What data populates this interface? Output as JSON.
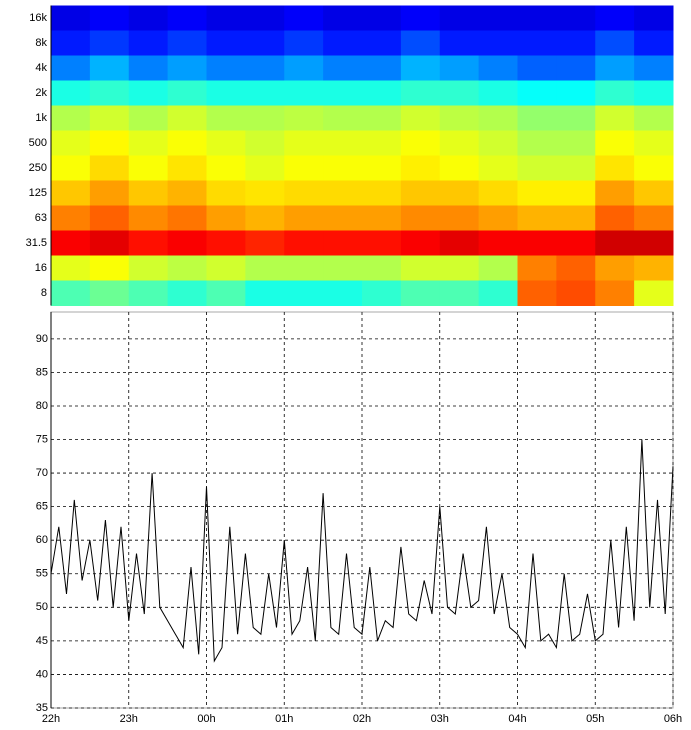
{
  "chart_data": [
    {
      "type": "heatmap",
      "y_categories": [
        "16k",
        "8k",
        "4k",
        "2k",
        "1k",
        "500",
        "250",
        "125",
        "63",
        "31.5",
        "16",
        "8"
      ],
      "x": [
        22,
        22.5,
        23,
        23.5,
        24,
        24.5,
        25,
        25.5,
        26,
        26.5,
        27,
        27.5,
        28,
        28.5,
        29,
        29.5
      ],
      "xlim": [
        22,
        30
      ],
      "zlim": [
        0,
        100
      ],
      "values": [
        [
          10,
          12,
          10,
          12,
          10,
          10,
          12,
          10,
          10,
          12,
          10,
          10,
          10,
          10,
          12,
          10
        ],
        [
          15,
          18,
          15,
          18,
          15,
          15,
          18,
          15,
          15,
          20,
          15,
          15,
          15,
          15,
          20,
          15
        ],
        [
          25,
          30,
          25,
          28,
          25,
          25,
          28,
          25,
          25,
          30,
          28,
          25,
          22,
          22,
          28,
          25
        ],
        [
          40,
          42,
          40,
          42,
          40,
          40,
          40,
          40,
          40,
          42,
          42,
          40,
          38,
          38,
          42,
          40
        ],
        [
          55,
          58,
          55,
          58,
          55,
          55,
          56,
          55,
          55,
          58,
          56,
          55,
          52,
          52,
          58,
          55
        ],
        [
          60,
          63,
          60,
          62,
          60,
          58,
          60,
          60,
          60,
          62,
          60,
          58,
          55,
          55,
          62,
          60
        ],
        [
          62,
          66,
          62,
          65,
          62,
          60,
          62,
          62,
          62,
          64,
          62,
          60,
          58,
          58,
          65,
          62
        ],
        [
          68,
          72,
          68,
          70,
          66,
          65,
          66,
          66,
          66,
          68,
          68,
          66,
          64,
          64,
          72,
          68
        ],
        [
          75,
          78,
          74,
          76,
          72,
          70,
          72,
          72,
          72,
          74,
          74,
          72,
          70,
          70,
          78,
          75
        ],
        [
          88,
          90,
          86,
          88,
          86,
          84,
          86,
          86,
          86,
          88,
          90,
          88,
          88,
          88,
          92,
          92
        ],
        [
          60,
          62,
          58,
          56,
          58,
          55,
          55,
          55,
          55,
          58,
          58,
          55,
          75,
          78,
          72,
          70
        ],
        [
          45,
          48,
          45,
          42,
          45,
          40,
          40,
          40,
          42,
          45,
          45,
          42,
          78,
          80,
          75,
          60
        ]
      ]
    },
    {
      "type": "line",
      "color": "#000000",
      "grid": true,
      "x": [
        22.0,
        22.1,
        22.2,
        22.3,
        22.4,
        22.5,
        22.6,
        22.7,
        22.8,
        22.9,
        23.0,
        23.1,
        23.2,
        23.3,
        23.4,
        23.5,
        23.6,
        23.7,
        23.8,
        23.9,
        24.0,
        24.1,
        24.2,
        24.3,
        24.4,
        24.5,
        24.6,
        24.7,
        24.8,
        24.9,
        25.0,
        25.1,
        25.2,
        25.3,
        25.4,
        25.5,
        25.6,
        25.7,
        25.8,
        25.9,
        26.0,
        26.1,
        26.2,
        26.3,
        26.4,
        26.5,
        26.6,
        26.7,
        26.8,
        26.9,
        27.0,
        27.1,
        27.2,
        27.3,
        27.4,
        27.5,
        27.6,
        27.7,
        27.8,
        27.9,
        28.0,
        28.1,
        28.2,
        28.3,
        28.4,
        28.5,
        28.6,
        28.7,
        28.8,
        28.9,
        29.0,
        29.1,
        29.2,
        29.3,
        29.4,
        29.5,
        29.6,
        29.7,
        29.8,
        29.9,
        30.0
      ],
      "values": [
        55,
        62,
        52,
        66,
        54,
        60,
        51,
        63,
        50,
        62,
        48,
        58,
        49,
        70,
        50,
        48,
        46,
        44,
        56,
        43,
        68,
        42,
        44,
        62,
        46,
        58,
        47,
        46,
        55,
        47,
        60,
        46,
        48,
        56,
        45,
        67,
        47,
        46,
        58,
        47,
        46,
        56,
        45,
        48,
        47,
        59,
        49,
        48,
        54,
        49,
        65,
        50,
        49,
        58,
        50,
        51,
        62,
        49,
        55,
        47,
        46,
        44,
        58,
        45,
        46,
        44,
        55,
        45,
        46,
        52,
        45,
        46,
        60,
        47,
        62,
        48,
        75,
        50,
        66,
        49,
        71
      ],
      "xlim": [
        22,
        30
      ],
      "xticks": [
        {
          "value": 22,
          "label": "22h"
        },
        {
          "value": 23,
          "label": "23h"
        },
        {
          "value": 24,
          "label": "00h"
        },
        {
          "value": 25,
          "label": "01h"
        },
        {
          "value": 26,
          "label": "02h"
        },
        {
          "value": 27,
          "label": "03h"
        },
        {
          "value": 28,
          "label": "04h"
        },
        {
          "value": 29,
          "label": "05h"
        },
        {
          "value": 30,
          "label": "06h"
        }
      ],
      "ylim": [
        35,
        94
      ],
      "yticks": [
        35,
        40,
        45,
        50,
        55,
        60,
        65,
        70,
        75,
        80,
        85,
        90
      ]
    }
  ]
}
